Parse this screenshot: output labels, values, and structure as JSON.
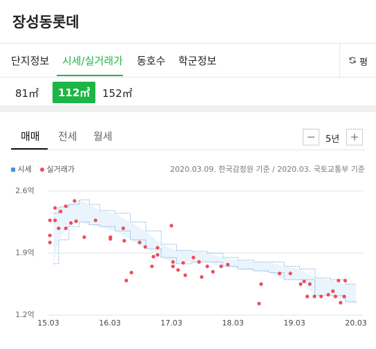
{
  "header": {
    "title": "장성동롯데"
  },
  "tabs": [
    "단지정보",
    "시세/실거래가",
    "동호수",
    "학군정보"
  ],
  "unit_button": "평",
  "sizes": [
    "81㎡",
    "112㎡",
    "152㎡"
  ],
  "deal_tabs": [
    "매매",
    "전세",
    "월세"
  ],
  "period": "5년",
  "chart_data": {
    "type": "scatter",
    "note": "2020.03.09. 한국감정원 기준 / 2020.03. 국토교통부 기준",
    "ylim": [
      1.2,
      2.6
    ],
    "yticks": [
      {
        "value": 1.2,
        "label": "1.2억"
      },
      {
        "value": 1.9,
        "label": "1.9억"
      },
      {
        "value": 2.6,
        "label": "2.6억"
      }
    ],
    "xlim": [
      0,
      60
    ],
    "xticks": [
      {
        "value": 0,
        "label": "15.03"
      },
      {
        "value": 12,
        "label": "16.03"
      },
      {
        "value": 24,
        "label": "17.03"
      },
      {
        "value": 36,
        "label": "18.03"
      },
      {
        "value": 48,
        "label": "19.03"
      },
      {
        "value": 60,
        "label": "20.03"
      }
    ],
    "grid": true,
    "series": [
      {
        "name": "시세",
        "color": "#4a90d9",
        "x": [
          1,
          2,
          4,
          6,
          8,
          10,
          13,
          16,
          19,
          22,
          25,
          28,
          31,
          34,
          37,
          40,
          43,
          46,
          49,
          52,
          55,
          58,
          60
        ],
        "values": [
          2.35,
          2.42,
          2.45,
          2.5,
          2.45,
          2.38,
          2.35,
          2.25,
          2.15,
          2.0,
          1.93,
          1.92,
          1.9,
          1.85,
          1.82,
          1.8,
          1.8,
          1.75,
          1.72,
          1.62,
          1.6,
          1.55,
          1.55
        ],
        "values_low": [
          1.78,
          2.05,
          2.2,
          2.25,
          2.22,
          2.2,
          2.15,
          2.05,
          1.95,
          1.85,
          1.78,
          1.8,
          1.8,
          1.75,
          1.72,
          1.7,
          1.68,
          1.6,
          1.6,
          1.42,
          1.42,
          1.35,
          1.33
        ]
      },
      {
        "name": "실거래가",
        "color": "#ef4c57",
        "x": [
          0.3,
          0.3,
          0.3,
          1.3,
          1.3,
          2.0,
          2.4,
          3.4,
          3.4,
          4.4,
          5.1,
          5.4,
          7.0,
          9.2,
          12.1,
          12.1,
          14.6,
          14.8,
          15.2,
          16.2,
          17.8,
          18.9,
          20.5,
          20.2,
          21.3,
          21.3,
          24.0,
          24.3,
          24.3,
          25.3,
          26.3,
          26.7,
          28.3,
          29.4,
          29.9,
          31.0,
          32.1,
          33.7,
          35.0,
          41.5,
          41.1,
          45.1,
          47.2,
          49.2,
          49.9,
          51.0,
          50.5,
          51.9,
          53.2,
          54.6,
          55.5,
          56.0,
          56.6,
          57.0,
          57.7,
          57.9
        ],
        "values": [
          2.27,
          2.1,
          2.02,
          2.27,
          2.41,
          2.18,
          2.37,
          2.43,
          2.18,
          2.24,
          2.49,
          2.26,
          2.08,
          2.27,
          2.06,
          2.08,
          2.18,
          2.04,
          1.59,
          1.68,
          2.02,
          1.97,
          1.86,
          1.75,
          1.96,
          1.88,
          2.21,
          1.8,
          1.75,
          1.71,
          1.79,
          1.65,
          1.85,
          1.8,
          1.63,
          1.75,
          1.69,
          1.75,
          1.77,
          1.55,
          1.33,
          1.67,
          1.67,
          1.55,
          1.58,
          1.55,
          1.41,
          1.41,
          1.41,
          1.43,
          1.47,
          1.41,
          1.59,
          1.34,
          1.41,
          1.59
        ]
      }
    ]
  }
}
